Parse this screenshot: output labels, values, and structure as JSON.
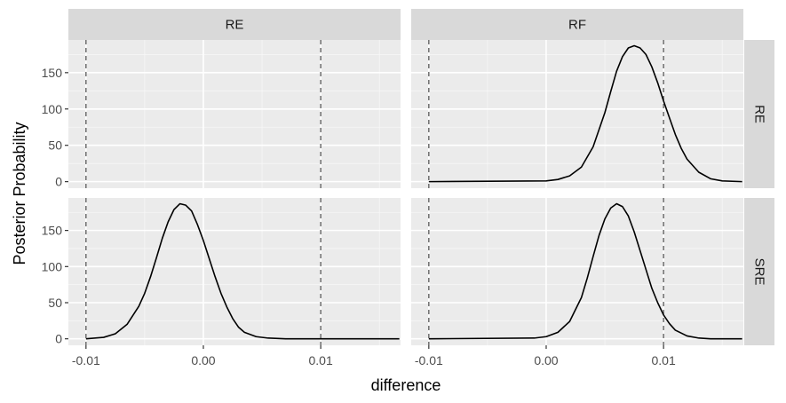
{
  "chart_data": {
    "type": "line",
    "facets": {
      "columns": [
        "RE",
        "RF"
      ],
      "rows": [
        "RE",
        "SRE"
      ]
    },
    "xlabel": "difference",
    "ylabel": "Posterior Probability",
    "xlim": [
      -0.0115,
      0.0168
    ],
    "ylim": [
      -9,
      195
    ],
    "x_ticks": [
      -0.01,
      0.0,
      0.01
    ],
    "x_tick_labels": [
      "-0.01",
      "0.00",
      "0.01"
    ],
    "y_ticks": [
      0,
      50,
      100,
      150
    ],
    "y_tick_labels": [
      "0",
      "50",
      "100",
      "150"
    ],
    "reference_lines": [
      -0.01,
      0.01
    ],
    "grid": true,
    "panels": [
      {
        "col": "RE",
        "row": "RE",
        "x": [],
        "y": []
      },
      {
        "col": "RF",
        "row": "RE",
        "x": [
          -0.01,
          0.0,
          0.001,
          0.002,
          0.003,
          0.004,
          0.005,
          0.0055,
          0.006,
          0.0065,
          0.007,
          0.0075,
          0.008,
          0.0085,
          0.009,
          0.0095,
          0.01,
          0.0105,
          0.011,
          0.0115,
          0.012,
          0.013,
          0.014,
          0.015,
          0.0167
        ],
        "y": [
          0,
          1,
          3,
          8,
          20,
          48,
          95,
          124,
          152,
          172,
          184,
          187,
          184,
          175,
          158,
          136,
          111,
          88,
          65,
          46,
          31,
          13,
          4,
          1,
          0
        ]
      },
      {
        "col": "RE",
        "row": "SRE",
        "x": [
          -0.01,
          -0.0085,
          -0.0075,
          -0.0065,
          -0.0055,
          -0.005,
          -0.0045,
          -0.004,
          -0.0035,
          -0.003,
          -0.0025,
          -0.002,
          -0.0015,
          -0.001,
          -0.0005,
          0.0,
          0.0005,
          0.001,
          0.0015,
          0.002,
          0.0025,
          0.003,
          0.0035,
          0.0045,
          0.0055,
          0.007,
          0.009,
          0.0167
        ],
        "y": [
          0,
          2,
          7,
          20,
          45,
          63,
          86,
          112,
          139,
          162,
          179,
          187,
          185,
          177,
          158,
          136,
          111,
          86,
          63,
          44,
          28,
          16,
          9,
          3,
          1,
          0,
          0,
          0
        ]
      },
      {
        "col": "RF",
        "row": "SRE",
        "x": [
          -0.01,
          -0.001,
          0.0,
          0.001,
          0.002,
          0.003,
          0.0035,
          0.004,
          0.0045,
          0.005,
          0.0055,
          0.006,
          0.0065,
          0.007,
          0.0075,
          0.008,
          0.0085,
          0.009,
          0.0095,
          0.01,
          0.0105,
          0.011,
          0.012,
          0.013,
          0.014,
          0.0167
        ],
        "y": [
          0,
          1,
          3,
          9,
          24,
          57,
          84,
          114,
          143,
          166,
          181,
          187,
          183,
          170,
          148,
          122,
          96,
          70,
          50,
          33,
          21,
          12,
          4,
          1,
          0,
          0
        ]
      }
    ]
  }
}
